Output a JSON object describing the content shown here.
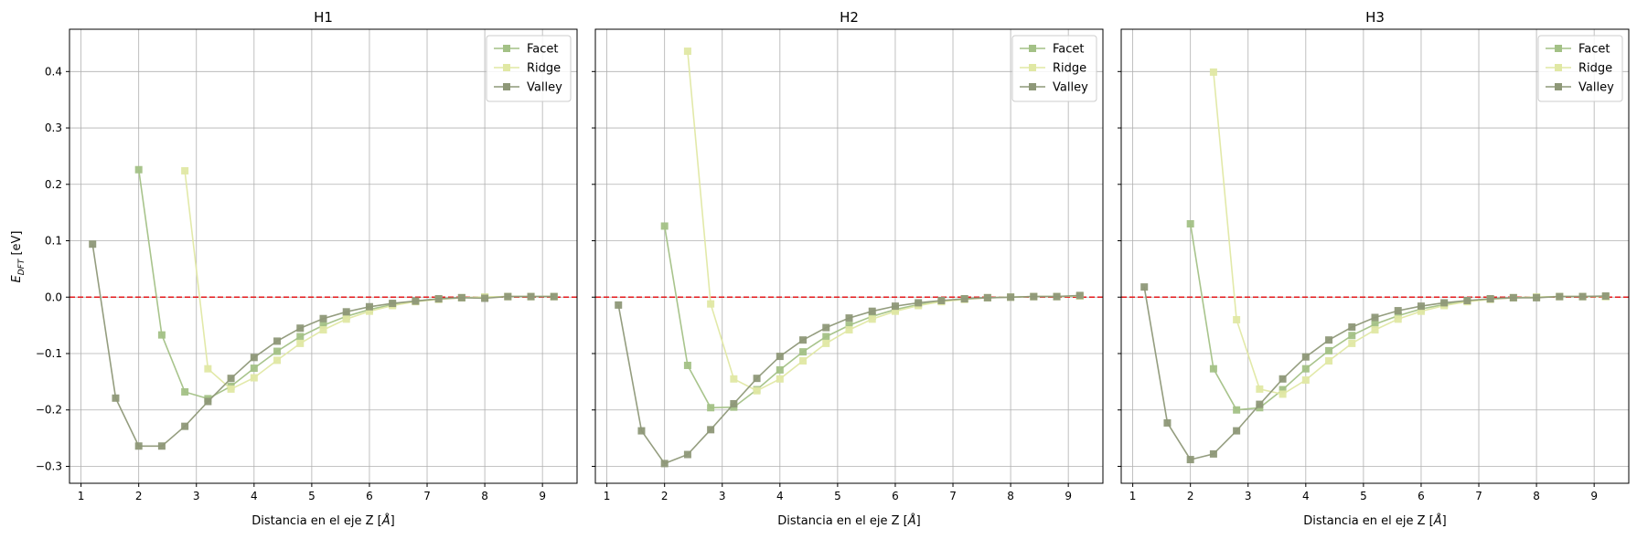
{
  "figure": {
    "ylabel": "E_DFT [eV]",
    "ylabel_main": "E",
    "ylabel_sub": "DFT",
    "ylabel_unit": " [eV]",
    "shared_y": true,
    "colors": {
      "Facet": "#a3c186",
      "Ridge": "#e0e8a4",
      "Valley": "#8e9878",
      "zero_line": "#e31a1c",
      "grid": "#b0b0b0"
    }
  },
  "chart_data": [
    {
      "type": "line",
      "title": "H1",
      "xlabel": "Distancia en el eje Z [Å]",
      "xlabel_text": "Distancia en el eje Z [",
      "xlabel_unit": "Å",
      "xlim": [
        0.8,
        9.6
      ],
      "ylim": [
        -0.33,
        0.475
      ],
      "xticks": [
        1,
        2,
        3,
        4,
        5,
        6,
        7,
        8,
        9
      ],
      "yticks": [
        -0.3,
        -0.2,
        -0.1,
        0.0,
        0.1,
        0.2,
        0.3,
        0.4
      ],
      "ytick_labels": [
        "−0.3",
        "−0.2",
        "−0.1",
        "0.0",
        "0.1",
        "0.2",
        "0.3",
        "0.4"
      ],
      "grid": true,
      "legend": "top-right",
      "hline": 0.0,
      "series": [
        {
          "name": "Facet",
          "x": [
            2.0,
            2.4,
            2.8,
            3.2,
            3.6,
            4.0,
            4.4,
            4.8,
            5.2,
            5.6,
            6.0,
            6.4,
            6.8,
            7.2,
            7.6,
            8.0,
            8.4,
            8.8,
            9.2
          ],
          "y": [
            0.226,
            -0.067,
            -0.168,
            -0.18,
            -0.158,
            -0.126,
            -0.096,
            -0.07,
            -0.05,
            -0.034,
            -0.022,
            -0.013,
            -0.007,
            -0.003,
            -0.001,
            0.0,
            0.001,
            0.001,
            0.001
          ]
        },
        {
          "name": "Ridge",
          "x": [
            2.8,
            3.2,
            3.6,
            4.0,
            4.4,
            4.8,
            5.2,
            5.6,
            6.0,
            6.4,
            6.8,
            7.2,
            7.6,
            8.0,
            8.4,
            8.8,
            9.2
          ],
          "y": [
            0.224,
            -0.127,
            -0.163,
            -0.143,
            -0.112,
            -0.082,
            -0.058,
            -0.039,
            -0.025,
            -0.015,
            -0.008,
            -0.004,
            -0.001,
            0.0,
            0.001,
            0.001,
            0.001
          ]
        },
        {
          "name": "Valley",
          "x": [
            1.2,
            1.6,
            2.0,
            2.4,
            2.8,
            3.2,
            3.6,
            4.0,
            4.4,
            4.8,
            5.2,
            5.6,
            6.0,
            6.4,
            6.8,
            7.2,
            7.6,
            8.0,
            8.4,
            8.8,
            9.2
          ],
          "y": [
            0.094,
            -0.179,
            -0.264,
            -0.264,
            -0.229,
            -0.185,
            -0.144,
            -0.107,
            -0.078,
            -0.055,
            -0.038,
            -0.026,
            -0.017,
            -0.011,
            -0.007,
            -0.003,
            -0.001,
            -0.002,
            0.001,
            0.001,
            0.001
          ]
        }
      ]
    },
    {
      "type": "line",
      "title": "H2",
      "xlabel": "Distancia en el eje Z [Å]",
      "xlabel_text": "Distancia en el eje Z [",
      "xlabel_unit": "Å",
      "xlim": [
        0.8,
        9.6
      ],
      "ylim": [
        -0.33,
        0.475
      ],
      "xticks": [
        1,
        2,
        3,
        4,
        5,
        6,
        7,
        8,
        9
      ],
      "yticks": [
        -0.3,
        -0.2,
        -0.1,
        0.0,
        0.1,
        0.2,
        0.3,
        0.4
      ],
      "ytick_labels": [
        "",
        "",
        "",
        "",
        "",
        "",
        "",
        ""
      ],
      "grid": true,
      "legend": "top-right",
      "hline": 0.0,
      "series": [
        {
          "name": "Facet",
          "x": [
            2.0,
            2.4,
            2.8,
            3.2,
            3.6,
            4.0,
            4.4,
            4.8,
            5.2,
            5.6,
            6.0,
            6.4,
            6.8,
            7.2,
            7.6,
            8.0,
            8.4,
            8.8,
            9.2
          ],
          "y": [
            0.126,
            -0.121,
            -0.196,
            -0.195,
            -0.164,
            -0.129,
            -0.097,
            -0.07,
            -0.05,
            -0.034,
            -0.022,
            -0.013,
            -0.007,
            -0.003,
            -0.001,
            0.0,
            0.001,
            0.001,
            0.002
          ]
        },
        {
          "name": "Ridge",
          "x": [
            2.4,
            2.8,
            3.2,
            3.6,
            4.0,
            4.4,
            4.8,
            5.2,
            5.6,
            6.0,
            6.4,
            6.8,
            7.2,
            7.6,
            8.0,
            8.4,
            8.8,
            9.2
          ],
          "y": [
            0.436,
            -0.012,
            -0.145,
            -0.166,
            -0.145,
            -0.113,
            -0.082,
            -0.058,
            -0.039,
            -0.025,
            -0.015,
            -0.008,
            -0.004,
            -0.001,
            0.0,
            0.001,
            0.001,
            0.002
          ]
        },
        {
          "name": "Valley",
          "x": [
            1.2,
            1.6,
            2.0,
            2.4,
            2.8,
            3.2,
            3.6,
            4.0,
            4.4,
            4.8,
            5.2,
            5.6,
            6.0,
            6.4,
            6.8,
            7.2,
            7.6,
            8.0,
            8.4,
            8.8,
            9.2
          ],
          "y": [
            -0.014,
            -0.237,
            -0.295,
            -0.279,
            -0.235,
            -0.189,
            -0.144,
            -0.105,
            -0.076,
            -0.054,
            -0.037,
            -0.025,
            -0.016,
            -0.01,
            -0.006,
            -0.003,
            -0.001,
            0.0,
            0.001,
            0.001,
            0.003
          ]
        }
      ]
    },
    {
      "type": "line",
      "title": "H3",
      "xlabel": "Distancia en el eje Z [Å]",
      "xlabel_text": "Distancia en el eje Z [",
      "xlabel_unit": "Å",
      "xlim": [
        0.8,
        9.6
      ],
      "ylim": [
        -0.33,
        0.475
      ],
      "xticks": [
        1,
        2,
        3,
        4,
        5,
        6,
        7,
        8,
        9
      ],
      "yticks": [
        -0.3,
        -0.2,
        -0.1,
        0.0,
        0.1,
        0.2,
        0.3,
        0.4
      ],
      "ytick_labels": [
        "",
        "",
        "",
        "",
        "",
        "",
        "",
        ""
      ],
      "grid": true,
      "legend": "top-right",
      "hline": 0.0,
      "series": [
        {
          "name": "Facet",
          "x": [
            2.0,
            2.4,
            2.8,
            3.2,
            3.6,
            4.0,
            4.4,
            4.8,
            5.2,
            5.6,
            6.0,
            6.4,
            6.8,
            7.2,
            7.6,
            8.0,
            8.4,
            8.8,
            9.2
          ],
          "y": [
            0.13,
            -0.127,
            -0.2,
            -0.196,
            -0.164,
            -0.127,
            -0.095,
            -0.068,
            -0.048,
            -0.033,
            -0.021,
            -0.013,
            -0.007,
            -0.003,
            -0.001,
            0.0,
            0.001,
            0.001,
            0.001
          ]
        },
        {
          "name": "Ridge",
          "x": [
            2.4,
            2.8,
            3.2,
            3.6,
            4.0,
            4.4,
            4.8,
            5.2,
            5.6,
            6.0,
            6.4,
            6.8,
            7.2,
            7.6,
            8.0,
            8.4,
            8.8,
            9.2
          ],
          "y": [
            0.399,
            -0.04,
            -0.163,
            -0.172,
            -0.147,
            -0.113,
            -0.082,
            -0.058,
            -0.039,
            -0.025,
            -0.015,
            -0.008,
            -0.004,
            -0.001,
            0.0,
            0.001,
            0.001,
            0.001
          ]
        },
        {
          "name": "Valley",
          "x": [
            1.2,
            1.6,
            2.0,
            2.4,
            2.8,
            3.2,
            3.6,
            4.0,
            4.4,
            4.8,
            5.2,
            5.6,
            6.0,
            6.4,
            6.8,
            7.2,
            7.6,
            8.0,
            8.4,
            8.8,
            9.2
          ],
          "y": [
            0.018,
            -0.223,
            -0.288,
            -0.278,
            -0.237,
            -0.19,
            -0.145,
            -0.106,
            -0.076,
            -0.053,
            -0.036,
            -0.024,
            -0.016,
            -0.01,
            -0.006,
            -0.003,
            -0.001,
            -0.001,
            0.001,
            0.001,
            0.002
          ]
        }
      ]
    }
  ]
}
